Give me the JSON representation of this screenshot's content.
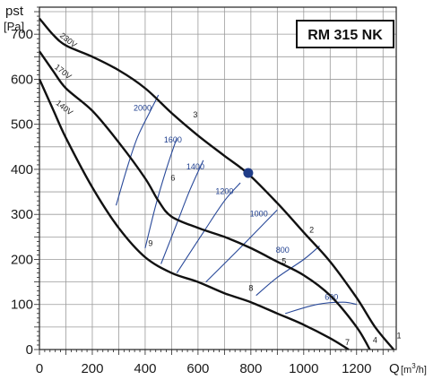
{
  "chart_data": {
    "type": "line",
    "model": "RM 315 NK",
    "ylabel": "pst",
    "yunit": "[Pa]",
    "xlabel": "Q",
    "xunit_prefix": "[m",
    "xunit_sup": "3",
    "xunit_suffix": "/h]",
    "xlim": [
      0,
      1350
    ],
    "ylim": [
      0,
      760
    ],
    "xticks": [
      0,
      200,
      400,
      600,
      800,
      1000,
      1200
    ],
    "yticks": [
      0,
      100,
      200,
      300,
      400,
      500,
      600,
      700
    ],
    "grid": true,
    "colors": {
      "curve": "#111111",
      "rpm": "#2a4a9a",
      "marker": "#1f3c88"
    },
    "series": [
      {
        "name": "230V",
        "points": [
          [
            0,
            735
          ],
          [
            50,
            700
          ],
          [
            100,
            675
          ],
          [
            200,
            650
          ],
          [
            300,
            620
          ],
          [
            400,
            580
          ],
          [
            500,
            525
          ],
          [
            600,
            475
          ],
          [
            700,
            430
          ],
          [
            790,
            390
          ],
          [
            900,
            325
          ],
          [
            1000,
            260
          ],
          [
            1100,
            195
          ],
          [
            1200,
            115
          ],
          [
            1270,
            50
          ],
          [
            1340,
            0
          ]
        ]
      },
      {
        "name": "170V",
        "points": [
          [
            0,
            662
          ],
          [
            50,
            620
          ],
          [
            100,
            580
          ],
          [
            200,
            530
          ],
          [
            300,
            460
          ],
          [
            400,
            380
          ],
          [
            450,
            330
          ],
          [
            500,
            295
          ],
          [
            600,
            270
          ],
          [
            700,
            250
          ],
          [
            800,
            225
          ],
          [
            900,
            195
          ],
          [
            1000,
            165
          ],
          [
            1100,
            120
          ],
          [
            1200,
            50
          ],
          [
            1250,
            0
          ]
        ]
      },
      {
        "name": "140V",
        "points": [
          [
            0,
            600
          ],
          [
            50,
            535
          ],
          [
            100,
            470
          ],
          [
            200,
            360
          ],
          [
            300,
            270
          ],
          [
            400,
            205
          ],
          [
            500,
            170
          ],
          [
            600,
            150
          ],
          [
            700,
            125
          ],
          [
            800,
            105
          ],
          [
            900,
            80
          ],
          [
            1000,
            55
          ],
          [
            1100,
            25
          ],
          [
            1170,
            0
          ]
        ]
      }
    ],
    "operating_point": {
      "x": 790,
      "y": 392
    },
    "curve_labels": [
      {
        "label": "230V",
        "x": 75,
        "y": 695
      },
      {
        "label": "170V",
        "x": 55,
        "y": 625
      },
      {
        "label": "140V",
        "x": 60,
        "y": 545
      }
    ],
    "point_labels": [
      {
        "label": "1",
        "x": 1360,
        "y": 25
      },
      {
        "label": "2",
        "x": 1030,
        "y": 260
      },
      {
        "label": "3",
        "x": 590,
        "y": 515
      },
      {
        "label": "4",
        "x": 1270,
        "y": 15
      },
      {
        "label": "5",
        "x": 925,
        "y": 190
      },
      {
        "label": "6",
        "x": 505,
        "y": 375
      },
      {
        "label": "7",
        "x": 1165,
        "y": 10
      },
      {
        "label": "8",
        "x": 800,
        "y": 130
      },
      {
        "label": "9",
        "x": 420,
        "y": 230
      }
    ],
    "rpm_curves": [
      {
        "label": "2000",
        "points": [
          [
            290,
            320
          ],
          [
            330,
            400
          ],
          [
            370,
            470
          ],
          [
            420,
            530
          ],
          [
            450,
            565
          ]
        ],
        "label_at": [
          390,
          530
        ]
      },
      {
        "label": "1600",
        "points": [
          [
            400,
            225
          ],
          [
            440,
            320
          ],
          [
            480,
            400
          ],
          [
            520,
            470
          ]
        ],
        "label_at": [
          505,
          460
        ]
      },
      {
        "label": "1400",
        "points": [
          [
            460,
            190
          ],
          [
            520,
            280
          ],
          [
            570,
            355
          ],
          [
            620,
            420
          ]
        ],
        "label_at": [
          590,
          400
        ]
      },
      {
        "label": "1200",
        "points": [
          [
            520,
            170
          ],
          [
            620,
            260
          ],
          [
            700,
            330
          ],
          [
            760,
            370
          ]
        ],
        "label_at": [
          700,
          345
        ]
      },
      {
        "label": "1000",
        "points": [
          [
            630,
            150
          ],
          [
            750,
            220
          ],
          [
            850,
            280
          ],
          [
            900,
            310
          ]
        ],
        "label_at": [
          830,
          295
        ]
      },
      {
        "label": "800",
        "points": [
          [
            820,
            120
          ],
          [
            900,
            160
          ],
          [
            1000,
            200
          ],
          [
            1060,
            230
          ]
        ],
        "label_at": [
          920,
          215
        ]
      },
      {
        "label": "600",
        "points": [
          [
            930,
            80
          ],
          [
            1050,
            100
          ],
          [
            1150,
            105
          ],
          [
            1200,
            100
          ]
        ],
        "label_at": [
          1105,
          110
        ]
      }
    ]
  }
}
